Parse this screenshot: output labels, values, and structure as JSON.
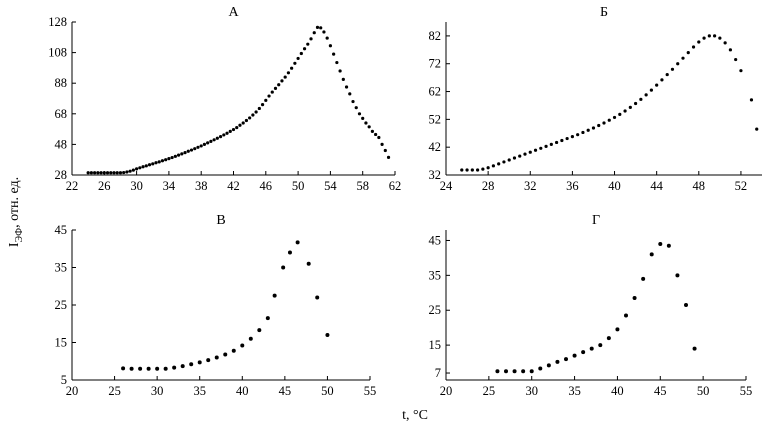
{
  "figure": {
    "ylabel_main": "I",
    "ylabel_sub": "ЭФ",
    "ylabel_rest": ", отн. ед.",
    "xlabel": "t, °C"
  },
  "chart_data": [
    {
      "type": "scatter",
      "title": "А",
      "xlim": [
        22,
        62
      ],
      "ylim": [
        28,
        128
      ],
      "xticks": [
        22,
        26,
        30,
        34,
        38,
        42,
        46,
        50,
        54,
        58,
        62
      ],
      "xtick_labels": [
        "22",
        "26",
        "30",
        "34",
        "38",
        "42",
        "46",
        "50",
        "54",
        "58",
        "62"
      ],
      "yticks": [
        28,
        48,
        68,
        88,
        108,
        128
      ],
      "grid": false,
      "points": [
        [
          24,
          29.5
        ],
        [
          24.4,
          29.5
        ],
        [
          24.8,
          29.5
        ],
        [
          25.2,
          29.5
        ],
        [
          25.6,
          29.5
        ],
        [
          26,
          29.5
        ],
        [
          26.4,
          29.5
        ],
        [
          26.8,
          29.5
        ],
        [
          27.2,
          29.5
        ],
        [
          27.6,
          29.5
        ],
        [
          28,
          29.5
        ],
        [
          28.4,
          29.6
        ],
        [
          28.8,
          30
        ],
        [
          29.2,
          30.5
        ],
        [
          29.6,
          31.2
        ],
        [
          30,
          32
        ],
        [
          30.4,
          32.7
        ],
        [
          30.8,
          33.4
        ],
        [
          31.2,
          34
        ],
        [
          31.6,
          34.7
        ],
        [
          32,
          35.3
        ],
        [
          32.4,
          36
        ],
        [
          32.8,
          36.6
        ],
        [
          33.2,
          37.3
        ],
        [
          33.6,
          38
        ],
        [
          34,
          38.7
        ],
        [
          34.4,
          39.4
        ],
        [
          34.8,
          40.2
        ],
        [
          35.2,
          41
        ],
        [
          35.6,
          41.8
        ],
        [
          36,
          42.6
        ],
        [
          36.4,
          43.5
        ],
        [
          36.8,
          44.3
        ],
        [
          37.2,
          45.2
        ],
        [
          37.6,
          46.1
        ],
        [
          38,
          47
        ],
        [
          38.4,
          48
        ],
        [
          38.8,
          49
        ],
        [
          39.2,
          50
        ],
        [
          39.6,
          51
        ],
        [
          40,
          52
        ],
        [
          40.4,
          53.1
        ],
        [
          40.8,
          54.2
        ],
        [
          41.2,
          55.3
        ],
        [
          41.6,
          56.5
        ],
        [
          42,
          57.7
        ],
        [
          42.4,
          59
        ],
        [
          42.8,
          60.5
        ],
        [
          43.2,
          62
        ],
        [
          43.6,
          63.6
        ],
        [
          44,
          65.3
        ],
        [
          44.4,
          67.2
        ],
        [
          44.8,
          69.2
        ],
        [
          45.2,
          71.5
        ],
        [
          45.6,
          74
        ],
        [
          46,
          76.8
        ],
        [
          46.4,
          79.6
        ],
        [
          46.8,
          82.2
        ],
        [
          47.2,
          84.6
        ],
        [
          47.6,
          87
        ],
        [
          48,
          89.5
        ],
        [
          48.4,
          92
        ],
        [
          48.8,
          94.8
        ],
        [
          49.2,
          97.8
        ],
        [
          49.6,
          101
        ],
        [
          50,
          104.2
        ],
        [
          50.4,
          107.4
        ],
        [
          50.8,
          110.5
        ],
        [
          51.2,
          113.5
        ],
        [
          51.6,
          117
        ],
        [
          52,
          121
        ],
        [
          52.4,
          124.5
        ],
        [
          52.8,
          124.2
        ],
        [
          53.2,
          121.5
        ],
        [
          53.6,
          117.5
        ],
        [
          54,
          112.5
        ],
        [
          54.4,
          107
        ],
        [
          54.8,
          101.5
        ],
        [
          55.2,
          96
        ],
        [
          55.6,
          90.5
        ],
        [
          56,
          85.5
        ],
        [
          56.4,
          81
        ],
        [
          56.8,
          76
        ],
        [
          57.2,
          72
        ],
        [
          57.6,
          68
        ],
        [
          58,
          65
        ],
        [
          58.4,
          62
        ],
        [
          58.8,
          59.5
        ],
        [
          59.2,
          56.5
        ],
        [
          59.6,
          54.5
        ],
        [
          60,
          52.5
        ],
        [
          60.4,
          48
        ],
        [
          60.8,
          44
        ],
        [
          61.2,
          39.5
        ]
      ]
    },
    {
      "type": "scatter",
      "title": "Б",
      "xlim": [
        24,
        54
      ],
      "ylim": [
        32,
        87
      ],
      "xticks": [
        24,
        28,
        32,
        36,
        40,
        44,
        48,
        52
      ],
      "xtick_labels": [
        "24",
        "28",
        "32",
        "36",
        "40",
        "44",
        "48",
        "52"
      ],
      "yticks": [
        32,
        42,
        52,
        62,
        72,
        82
      ],
      "grid": false,
      "points": [
        [
          25.5,
          33.8
        ],
        [
          26,
          33.8
        ],
        [
          26.5,
          33.8
        ],
        [
          27,
          33.8
        ],
        [
          27.5,
          34.1
        ],
        [
          28,
          34.6
        ],
        [
          28.5,
          35.3
        ],
        [
          29,
          36
        ],
        [
          29.5,
          36.7
        ],
        [
          30,
          37.4
        ],
        [
          30.5,
          38.1
        ],
        [
          31,
          38.8
        ],
        [
          31.5,
          39.5
        ],
        [
          32,
          40.2
        ],
        [
          32.5,
          40.9
        ],
        [
          33,
          41.6
        ],
        [
          33.5,
          42.3
        ],
        [
          34,
          43
        ],
        [
          34.5,
          43.7
        ],
        [
          35,
          44.4
        ],
        [
          35.5,
          45.1
        ],
        [
          36,
          45.8
        ],
        [
          36.5,
          46.5
        ],
        [
          37,
          47.3
        ],
        [
          37.5,
          48.1
        ],
        [
          38,
          48.9
        ],
        [
          38.5,
          49.8
        ],
        [
          39,
          50.7
        ],
        [
          39.5,
          51.7
        ],
        [
          40,
          52.7
        ],
        [
          40.5,
          53.8
        ],
        [
          41,
          55
        ],
        [
          41.5,
          56.3
        ],
        [
          42,
          57.7
        ],
        [
          42.5,
          59.2
        ],
        [
          43,
          60.8
        ],
        [
          43.5,
          62.5
        ],
        [
          44,
          64.3
        ],
        [
          44.5,
          66.2
        ],
        [
          45,
          68.1
        ],
        [
          45.5,
          70
        ],
        [
          46,
          72
        ],
        [
          46.5,
          74
        ],
        [
          47,
          76
        ],
        [
          47.5,
          78
        ],
        [
          48,
          79.8
        ],
        [
          48.5,
          81.2
        ],
        [
          49,
          82
        ],
        [
          49.5,
          82
        ],
        [
          50,
          81.2
        ],
        [
          50.5,
          79.5
        ],
        [
          51,
          77
        ],
        [
          51.5,
          73.5
        ],
        [
          52,
          69.5
        ],
        [
          53,
          59
        ],
        [
          53.5,
          48.5
        ]
      ]
    },
    {
      "type": "scatter",
      "title": "В",
      "xlim": [
        20,
        55
      ],
      "ylim": [
        5,
        45
      ],
      "xticks": [
        20,
        25,
        30,
        35,
        40,
        45,
        50,
        55
      ],
      "xtick_labels": [
        "20",
        "25",
        "30",
        "35",
        "40",
        "45",
        "50",
        "55"
      ],
      "yticks": [
        5,
        15,
        25,
        35,
        45
      ],
      "grid": false,
      "points": [
        [
          26,
          8.1
        ],
        [
          27,
          8
        ],
        [
          28,
          8
        ],
        [
          29,
          8
        ],
        [
          30,
          8
        ],
        [
          31,
          8
        ],
        [
          32,
          8.3
        ],
        [
          33,
          8.7
        ],
        [
          34,
          9.2
        ],
        [
          35,
          9.7
        ],
        [
          36,
          10.3
        ],
        [
          37,
          11
        ],
        [
          38,
          11.8
        ],
        [
          39,
          12.8
        ],
        [
          40,
          14.2
        ],
        [
          41,
          16
        ],
        [
          42,
          18.3
        ],
        [
          43,
          21.5
        ],
        [
          43.8,
          27.5
        ],
        [
          44.8,
          35
        ],
        [
          45.6,
          39
        ],
        [
          46.5,
          41.7
        ],
        [
          47.8,
          36
        ],
        [
          48.8,
          27
        ],
        [
          50,
          17
        ]
      ]
    },
    {
      "type": "scatter",
      "title": "Г",
      "xlim": [
        20,
        55
      ],
      "ylim": [
        5,
        48
      ],
      "xticks": [
        20,
        25,
        30,
        35,
        40,
        45,
        50,
        55
      ],
      "xtick_labels": [
        "20",
        "25",
        "30",
        "35",
        "40",
        "45",
        "50",
        "55"
      ],
      "yticks": [
        7,
        15,
        25,
        35,
        45
      ],
      "grid": false,
      "points": [
        [
          26,
          7.5
        ],
        [
          27,
          7.5
        ],
        [
          28,
          7.5
        ],
        [
          29,
          7.5
        ],
        [
          30,
          7.5
        ],
        [
          31,
          8.3
        ],
        [
          32,
          9.2
        ],
        [
          33,
          10.2
        ],
        [
          34,
          11
        ],
        [
          35,
          12
        ],
        [
          36,
          13
        ],
        [
          37,
          14
        ],
        [
          38,
          15
        ],
        [
          39,
          17
        ],
        [
          40,
          19.5
        ],
        [
          41,
          23.5
        ],
        [
          42,
          28.5
        ],
        [
          43,
          34
        ],
        [
          44,
          41
        ],
        [
          45,
          44
        ],
        [
          46,
          43.5
        ],
        [
          47,
          35
        ],
        [
          48,
          26.5
        ],
        [
          49,
          14
        ]
      ]
    }
  ]
}
